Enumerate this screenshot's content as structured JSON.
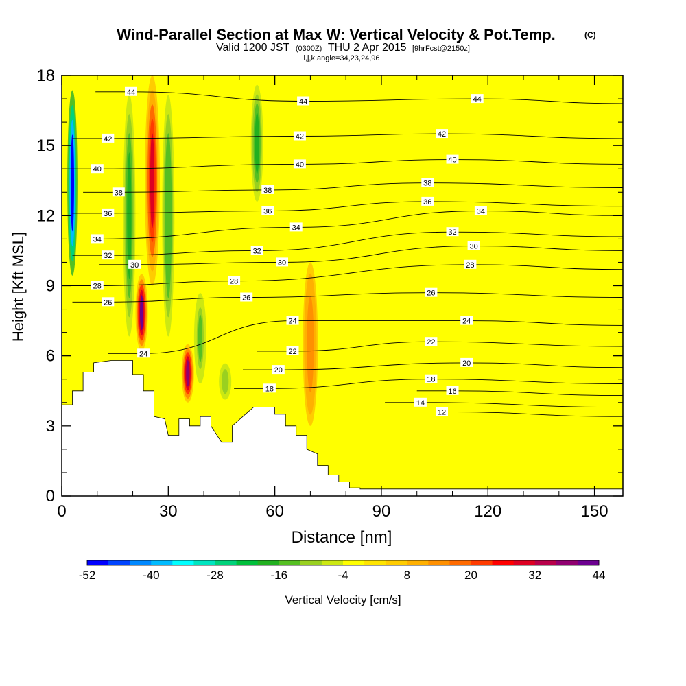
{
  "chart_data": {
    "type": "heatmap",
    "title": "Wind-Parallel Section at Max W: Vertical Velocity & Pot.Temp.",
    "title_suffix": "(C)",
    "subtitle_valid": "Valid 1200 JST",
    "subtitle_zulu": "(0300Z)",
    "subtitle_date": "THU 2 Apr 2015",
    "subtitle_fcst": "[9hrFcst@2150z]",
    "subtitle_indices": "i,j,k,angle=34,23,24,96",
    "xlabel": "Distance [nm]",
    "ylabel": "Height [Kft MSL]",
    "xlim": [
      0,
      158
    ],
    "ylim": [
      0,
      18
    ],
    "x_ticks": [
      "0",
      "30",
      "60",
      "90",
      "120",
      "150"
    ],
    "x_tick_values": [
      0,
      30,
      60,
      90,
      120,
      150
    ],
    "y_ticks": [
      "0",
      "3",
      "6",
      "9",
      "12",
      "15",
      "18"
    ],
    "y_tick_values": [
      0,
      3,
      6,
      9,
      12,
      15,
      18
    ],
    "colorbar": {
      "label": "Vertical Velocity [cm/s]",
      "tick_labels": [
        "-52",
        "-40",
        "-28",
        "-16",
        "-4",
        "8",
        "20",
        "32",
        "44"
      ],
      "levels_min": -52,
      "levels_max": 44,
      "colors": [
        "#0000ff",
        "#0044ff",
        "#0088ff",
        "#00bbff",
        "#00ffff",
        "#00e5c0",
        "#00d27a",
        "#00bf3b",
        "#22b020",
        "#55bf22",
        "#99d020",
        "#cce812",
        "#ffff00",
        "#ffe400",
        "#ffcc00",
        "#ffb000",
        "#ff9000",
        "#ff6a00",
        "#ff3b00",
        "#ff0000",
        "#dd0022",
        "#b8004a",
        "#900070",
        "#6c0090"
      ]
    },
    "vertical_velocity_features": [
      {
        "kind": "downdraft",
        "x": 3,
        "y_range": [
          8.8,
          18
        ],
        "peak": -50
      },
      {
        "kind": "downdraft",
        "x": 19,
        "y_range": [
          6,
          18
        ],
        "peak": -20
      },
      {
        "kind": "updraft",
        "x": 22.5,
        "y_range": [
          6.2,
          9.5
        ],
        "peak": 40
      },
      {
        "kind": "updraft",
        "x": 25.5,
        "y_range": [
          9,
          18
        ],
        "peak": 28
      },
      {
        "kind": "downdraft",
        "x": 30,
        "y_range": [
          6,
          18
        ],
        "peak": -16
      },
      {
        "kind": "updraft",
        "x": 35.5,
        "y_range": [
          4,
          6.5
        ],
        "peak": 36
      },
      {
        "kind": "downdraft",
        "x": 39,
        "y_range": [
          4.5,
          9
        ],
        "peak": -14
      },
      {
        "kind": "downdraft",
        "x": 46,
        "y_range": [
          4,
          5.8
        ],
        "peak": -12
      },
      {
        "kind": "downdraft",
        "x": 55,
        "y_range": [
          12.2,
          18
        ],
        "peak": -20
      },
      {
        "kind": "updraft",
        "x": 70,
        "y_range": [
          3,
          10
        ],
        "peak": 14
      }
    ],
    "potential_temperature_labels": [
      {
        "value": "44",
        "x": 19.5,
        "y": 17.3
      },
      {
        "value": "44",
        "x": 68,
        "y": 16.9
      },
      {
        "value": "44",
        "x": 117,
        "y": 17.0
      },
      {
        "value": "42",
        "x": 13,
        "y": 15.3
      },
      {
        "value": "42",
        "x": 67,
        "y": 15.4
      },
      {
        "value": "42",
        "x": 107,
        "y": 15.5
      },
      {
        "value": "40",
        "x": 10,
        "y": 14.0
      },
      {
        "value": "40",
        "x": 67,
        "y": 14.2
      },
      {
        "value": "40",
        "x": 110,
        "y": 14.4
      },
      {
        "value": "38",
        "x": 16,
        "y": 13.0
      },
      {
        "value": "38",
        "x": 58,
        "y": 13.1
      },
      {
        "value": "38",
        "x": 103,
        "y": 13.4
      },
      {
        "value": "36",
        "x": 13,
        "y": 12.1
      },
      {
        "value": "36",
        "x": 58,
        "y": 12.2
      },
      {
        "value": "36",
        "x": 103,
        "y": 12.6
      },
      {
        "value": "34",
        "x": 10,
        "y": 11.0
      },
      {
        "value": "34",
        "x": 66,
        "y": 11.5
      },
      {
        "value": "34",
        "x": 118,
        "y": 12.2
      },
      {
        "value": "32",
        "x": 13,
        "y": 10.3
      },
      {
        "value": "32",
        "x": 55,
        "y": 10.5
      },
      {
        "value": "32",
        "x": 110,
        "y": 11.3
      },
      {
        "value": "30",
        "x": 20.5,
        "y": 9.9
      },
      {
        "value": "30",
        "x": 62,
        "y": 10.0
      },
      {
        "value": "30",
        "x": 116,
        "y": 10.7
      },
      {
        "value": "28",
        "x": 10,
        "y": 9.0
      },
      {
        "value": "28",
        "x": 48.5,
        "y": 9.2
      },
      {
        "value": "28",
        "x": 115,
        "y": 9.9
      },
      {
        "value": "26",
        "x": 13,
        "y": 8.3
      },
      {
        "value": "26",
        "x": 52,
        "y": 8.5
      },
      {
        "value": "26",
        "x": 104,
        "y": 8.7
      },
      {
        "value": "24",
        "x": 23,
        "y": 6.1
      },
      {
        "value": "24",
        "x": 65,
        "y": 7.5
      },
      {
        "value": "24",
        "x": 114,
        "y": 7.5
      },
      {
        "value": "22",
        "x": 65,
        "y": 6.2
      },
      {
        "value": "22",
        "x": 104,
        "y": 6.6
      },
      {
        "value": "20",
        "x": 61,
        "y": 5.4
      },
      {
        "value": "20",
        "x": 114,
        "y": 5.7
      },
      {
        "value": "18",
        "x": 58.5,
        "y": 4.6
      },
      {
        "value": "18",
        "x": 104,
        "y": 5.0
      },
      {
        "value": "16",
        "x": 110,
        "y": 4.5
      },
      {
        "value": "14",
        "x": 101,
        "y": 4.0
      },
      {
        "value": "12",
        "x": 107,
        "y": 3.6
      }
    ],
    "terrain_profile": [
      [
        0,
        3.9
      ],
      [
        3,
        3.9
      ],
      [
        3,
        4.5
      ],
      [
        6,
        4.5
      ],
      [
        6,
        5.3
      ],
      [
        9,
        5.3
      ],
      [
        9,
        5.7
      ],
      [
        14,
        5.8
      ],
      [
        20,
        5.8
      ],
      [
        20,
        5.2
      ],
      [
        23,
        5.2
      ],
      [
        23,
        4.5
      ],
      [
        26,
        4.5
      ],
      [
        26,
        3.4
      ],
      [
        29,
        3.3
      ],
      [
        30,
        2.6
      ],
      [
        33,
        2.6
      ],
      [
        33,
        3.3
      ],
      [
        36,
        3.3
      ],
      [
        36,
        3.0
      ],
      [
        39,
        3.0
      ],
      [
        39,
        3.4
      ],
      [
        42,
        3.4
      ],
      [
        42,
        3.0
      ],
      [
        45,
        2.3
      ],
      [
        48,
        2.3
      ],
      [
        48,
        3.0
      ],
      [
        51,
        3.4
      ],
      [
        54,
        3.8
      ],
      [
        60,
        3.8
      ],
      [
        60,
        3.5
      ],
      [
        63,
        3.5
      ],
      [
        63,
        3.0
      ],
      [
        66,
        3.0
      ],
      [
        66,
        2.6
      ],
      [
        69,
        2.6
      ],
      [
        69,
        2.0
      ],
      [
        72,
        1.8
      ],
      [
        72,
        1.3
      ],
      [
        75,
        1.3
      ],
      [
        75,
        0.9
      ],
      [
        78,
        0.9
      ],
      [
        78,
        0.6
      ],
      [
        81,
        0.6
      ],
      [
        81,
        0.35
      ],
      [
        84,
        0.35
      ],
      [
        84,
        0.3
      ],
      [
        158,
        0.3
      ]
    ]
  }
}
